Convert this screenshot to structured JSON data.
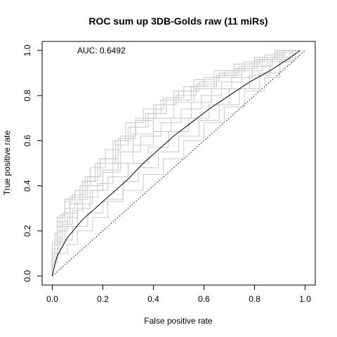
{
  "chart_data": {
    "type": "line",
    "title": "ROC sum up 3DB-Golds raw (11 miRs)",
    "xlabel": "False positive rate",
    "ylabel": "True positive rate",
    "xlim": [
      -0.04,
      1.04
    ],
    "ylim": [
      -0.04,
      1.04
    ],
    "xticks": [
      "0.0",
      "0.2",
      "0.4",
      "0.6",
      "0.8",
      "1.0"
    ],
    "yticks": [
      "0.0",
      "0.2",
      "0.4",
      "0.6",
      "0.8",
      "1.0"
    ],
    "xtick_values": [
      0,
      0.2,
      0.4,
      0.6,
      0.8,
      1.0
    ],
    "ytick_values": [
      0,
      0.2,
      0.4,
      0.6,
      0.8,
      1.0
    ],
    "annotation": "AUC: 0.6492",
    "grid": false,
    "colors": {
      "individual": "#c8c8c8",
      "average": "#000000",
      "diagonal": "#000000"
    },
    "diagonal": {
      "x": [
        0,
        1
      ],
      "y": [
        0,
        1
      ],
      "style": "dotted"
    },
    "series": [
      {
        "role": "individual",
        "x": [
          0,
          0.01,
          0.02,
          0.05,
          0.08,
          0.12,
          0.18,
          0.25,
          0.3,
          0.38,
          0.45,
          0.55,
          0.65,
          0.75,
          0.85,
          0.92,
          0.98
        ],
        "y": [
          0,
          0.1,
          0.18,
          0.26,
          0.33,
          0.36,
          0.42,
          0.5,
          0.58,
          0.66,
          0.72,
          0.78,
          0.84,
          0.89,
          0.93,
          0.97,
          1.0
        ]
      },
      {
        "role": "individual",
        "x": [
          0,
          0.02,
          0.05,
          0.1,
          0.15,
          0.2,
          0.26,
          0.32,
          0.4,
          0.48,
          0.56,
          0.64,
          0.72,
          0.8,
          0.88,
          0.95,
          0.98
        ],
        "y": [
          0,
          0.08,
          0.15,
          0.22,
          0.3,
          0.38,
          0.46,
          0.55,
          0.63,
          0.7,
          0.77,
          0.83,
          0.88,
          0.92,
          0.96,
          0.99,
          1.0
        ]
      },
      {
        "role": "individual",
        "x": [
          0,
          0.01,
          0.03,
          0.06,
          0.1,
          0.16,
          0.22,
          0.3,
          0.38,
          0.46,
          0.54,
          0.62,
          0.7,
          0.78,
          0.86,
          0.94,
          0.98
        ],
        "y": [
          0,
          0.05,
          0.12,
          0.2,
          0.26,
          0.32,
          0.38,
          0.44,
          0.5,
          0.57,
          0.64,
          0.7,
          0.76,
          0.83,
          0.89,
          0.95,
          1.0
        ]
      },
      {
        "role": "individual",
        "x": [
          0,
          0.02,
          0.04,
          0.07,
          0.12,
          0.17,
          0.24,
          0.29,
          0.36,
          0.44,
          0.52,
          0.6,
          0.68,
          0.76,
          0.84,
          0.92,
          0.98
        ],
        "y": [
          0,
          0.12,
          0.2,
          0.28,
          0.35,
          0.42,
          0.5,
          0.6,
          0.68,
          0.74,
          0.79,
          0.84,
          0.88,
          0.91,
          0.95,
          0.98,
          1.0
        ]
      },
      {
        "role": "individual",
        "x": [
          0,
          0.01,
          0.03,
          0.08,
          0.14,
          0.2,
          0.28,
          0.36,
          0.44,
          0.52,
          0.6,
          0.68,
          0.76,
          0.84,
          0.9,
          0.96,
          0.98
        ],
        "y": [
          0,
          0.04,
          0.1,
          0.16,
          0.22,
          0.28,
          0.33,
          0.38,
          0.45,
          0.52,
          0.6,
          0.68,
          0.75,
          0.82,
          0.88,
          0.95,
          1.0
        ]
      },
      {
        "role": "individual",
        "x": [
          0,
          0.02,
          0.05,
          0.09,
          0.13,
          0.19,
          0.25,
          0.31,
          0.37,
          0.43,
          0.5,
          0.58,
          0.66,
          0.74,
          0.82,
          0.9,
          0.98
        ],
        "y": [
          0,
          0.15,
          0.24,
          0.3,
          0.36,
          0.44,
          0.52,
          0.6,
          0.66,
          0.72,
          0.78,
          0.82,
          0.86,
          0.9,
          0.94,
          0.97,
          1.0
        ]
      },
      {
        "role": "individual",
        "x": [
          0,
          0.01,
          0.04,
          0.07,
          0.11,
          0.15,
          0.21,
          0.27,
          0.33,
          0.41,
          0.49,
          0.57,
          0.65,
          0.73,
          0.81,
          0.89,
          0.98
        ],
        "y": [
          0,
          0.07,
          0.14,
          0.24,
          0.32,
          0.4,
          0.48,
          0.56,
          0.62,
          0.7,
          0.76,
          0.8,
          0.85,
          0.89,
          0.92,
          0.96,
          1.0
        ]
      },
      {
        "role": "individual",
        "x": [
          0,
          0.01,
          0.02,
          0.06,
          0.1,
          0.14,
          0.2,
          0.27,
          0.35,
          0.43,
          0.51,
          0.59,
          0.67,
          0.75,
          0.83,
          0.91,
          0.98
        ],
        "y": [
          0,
          0.09,
          0.16,
          0.22,
          0.28,
          0.34,
          0.4,
          0.47,
          0.55,
          0.62,
          0.68,
          0.74,
          0.8,
          0.86,
          0.91,
          0.96,
          1.0
        ]
      },
      {
        "role": "individual",
        "x": [
          0,
          0.02,
          0.06,
          0.1,
          0.16,
          0.22,
          0.28,
          0.34,
          0.42,
          0.5,
          0.58,
          0.66,
          0.74,
          0.82,
          0.9,
          0.95,
          0.98
        ],
        "y": [
          0,
          0.06,
          0.1,
          0.14,
          0.2,
          0.26,
          0.34,
          0.42,
          0.48,
          0.55,
          0.62,
          0.69,
          0.76,
          0.83,
          0.9,
          0.96,
          1.0
        ]
      },
      {
        "role": "individual",
        "x": [
          0,
          0.01,
          0.03,
          0.05,
          0.09,
          0.14,
          0.19,
          0.26,
          0.33,
          0.4,
          0.48,
          0.56,
          0.64,
          0.72,
          0.8,
          0.88,
          0.98
        ],
        "y": [
          0,
          0.11,
          0.19,
          0.27,
          0.34,
          0.38,
          0.44,
          0.52,
          0.61,
          0.69,
          0.76,
          0.82,
          0.87,
          0.91,
          0.94,
          0.97,
          1.0
        ]
      },
      {
        "role": "individual",
        "x": [
          0,
          0.02,
          0.04,
          0.08,
          0.12,
          0.18,
          0.24,
          0.32,
          0.4,
          0.47,
          0.55,
          0.63,
          0.71,
          0.79,
          0.87,
          0.94,
          0.98
        ],
        "y": [
          0,
          0.1,
          0.17,
          0.23,
          0.29,
          0.35,
          0.41,
          0.5,
          0.58,
          0.64,
          0.7,
          0.77,
          0.83,
          0.88,
          0.93,
          0.97,
          1.0
        ]
      },
      {
        "role": "average",
        "x": [
          0,
          0.01,
          0.02,
          0.04,
          0.06,
          0.09,
          0.12,
          0.16,
          0.2,
          0.25,
          0.3,
          0.36,
          0.42,
          0.48,
          0.55,
          0.62,
          0.7,
          0.78,
          0.86,
          0.93,
          0.98
        ],
        "y": [
          0,
          0.05,
          0.09,
          0.13,
          0.17,
          0.21,
          0.25,
          0.29,
          0.33,
          0.38,
          0.43,
          0.5,
          0.56,
          0.62,
          0.68,
          0.74,
          0.8,
          0.86,
          0.91,
          0.96,
          1.0
        ]
      }
    ]
  }
}
